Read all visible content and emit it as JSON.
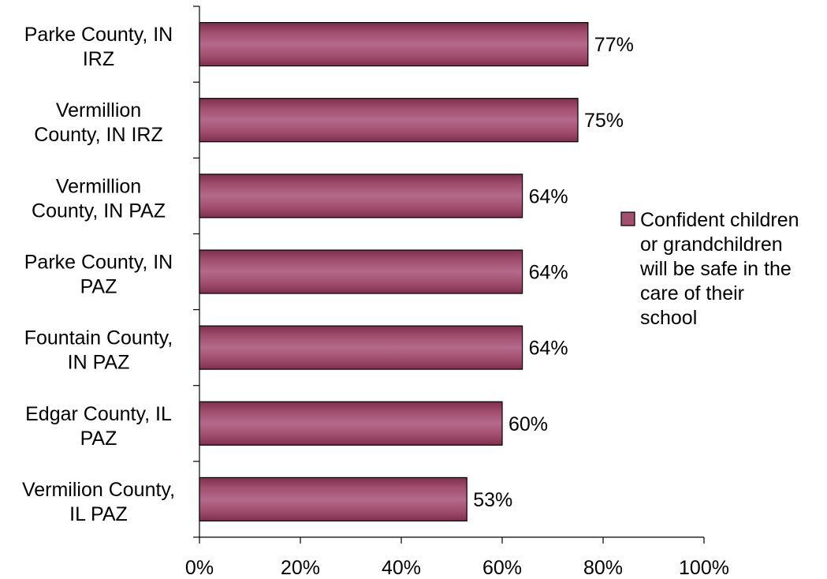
{
  "chart_data": {
    "type": "bar",
    "orientation": "horizontal",
    "categories": [
      [
        "Parke County, IN",
        "IRZ"
      ],
      [
        "Vermillion",
        "County, IN IRZ"
      ],
      [
        "Vermillion",
        "County, IN PAZ"
      ],
      [
        "Parke County, IN",
        "PAZ"
      ],
      [
        "Fountain County,",
        "IN PAZ"
      ],
      [
        "Edgar County, IL",
        "PAZ"
      ],
      [
        "Vermilion County,",
        "IL PAZ"
      ]
    ],
    "series": [
      {
        "name": [
          "Confident children",
          "or grandchildren",
          "will be safe in the",
          "care of their",
          "school"
        ],
        "values": [
          77,
          75,
          64,
          64,
          64,
          60,
          53
        ],
        "value_labels": [
          "77%",
          "75%",
          "64%",
          "64%",
          "64%",
          "60%",
          "53%"
        ],
        "color": "#a3506f"
      }
    ],
    "xlim": [
      0,
      100
    ],
    "xticks": [
      0,
      20,
      40,
      60,
      80,
      100
    ],
    "xtick_labels": [
      "0%",
      "20%",
      "40%",
      "60%",
      "80%",
      "100%"
    ],
    "title": "",
    "xlabel": "",
    "ylabel": "",
    "grid": false,
    "legend_position": "right"
  }
}
